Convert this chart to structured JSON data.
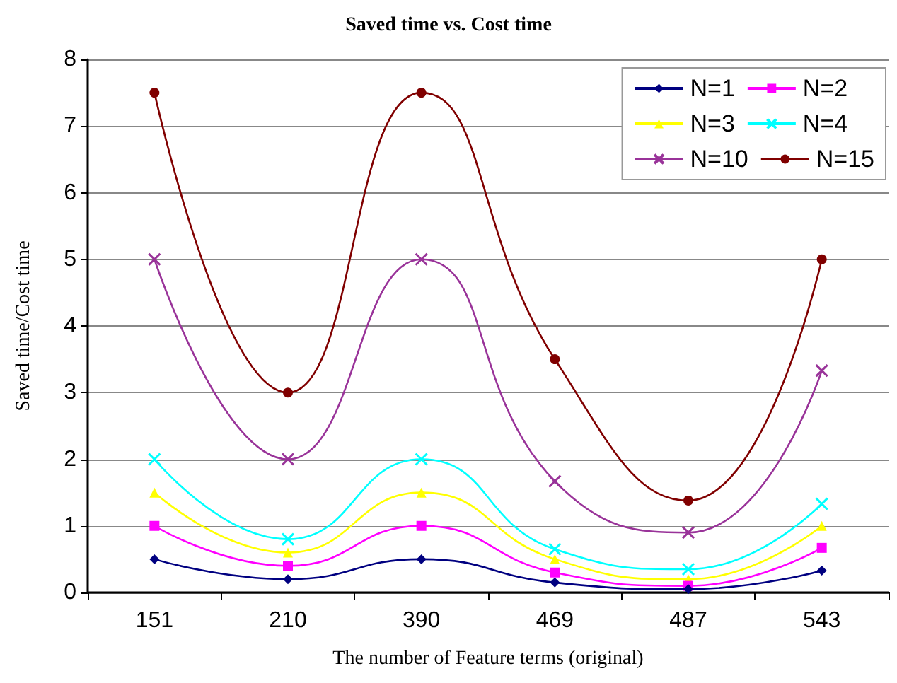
{
  "chart_data": {
    "type": "line",
    "title": "Saved time vs. Cost time",
    "xlabel": "The number of Feature terms (original)",
    "ylabel": "Saved time/Cost time",
    "categories": [
      "151",
      "210",
      "390",
      "469",
      "487",
      "543"
    ],
    "ylim": [
      0,
      8
    ],
    "yticks": [
      0,
      1,
      2,
      3,
      4,
      5,
      6,
      7,
      8
    ],
    "grid": "y",
    "legend": "top right",
    "series": [
      {
        "name": "N=1",
        "color": "#000080",
        "marker": "diamond",
        "values": [
          0.5,
          0.2,
          0.5,
          0.15,
          0.05,
          0.33
        ]
      },
      {
        "name": "N=2",
        "color": "#ff00ff",
        "marker": "square",
        "values": [
          1,
          0.4,
          1,
          0.3,
          0.1,
          0.67
        ]
      },
      {
        "name": "N=3",
        "color": "#ffff00",
        "marker": "triangle",
        "values": [
          1.5,
          0.6,
          1.5,
          0.5,
          0.2,
          1
        ]
      },
      {
        "name": "N=4",
        "color": "#00ffff",
        "marker": "cross",
        "values": [
          2,
          0.8,
          2,
          0.65,
          0.35,
          1.33
        ]
      },
      {
        "name": "N=10",
        "color": "#993399",
        "marker": "cross",
        "values": [
          5,
          2,
          5,
          1.67,
          0.9,
          3.33
        ]
      },
      {
        "name": "N=15",
        "color": "#800000",
        "marker": "circle",
        "values": [
          7.5,
          3,
          7.5,
          3.5,
          1.38,
          5
        ]
      }
    ]
  }
}
